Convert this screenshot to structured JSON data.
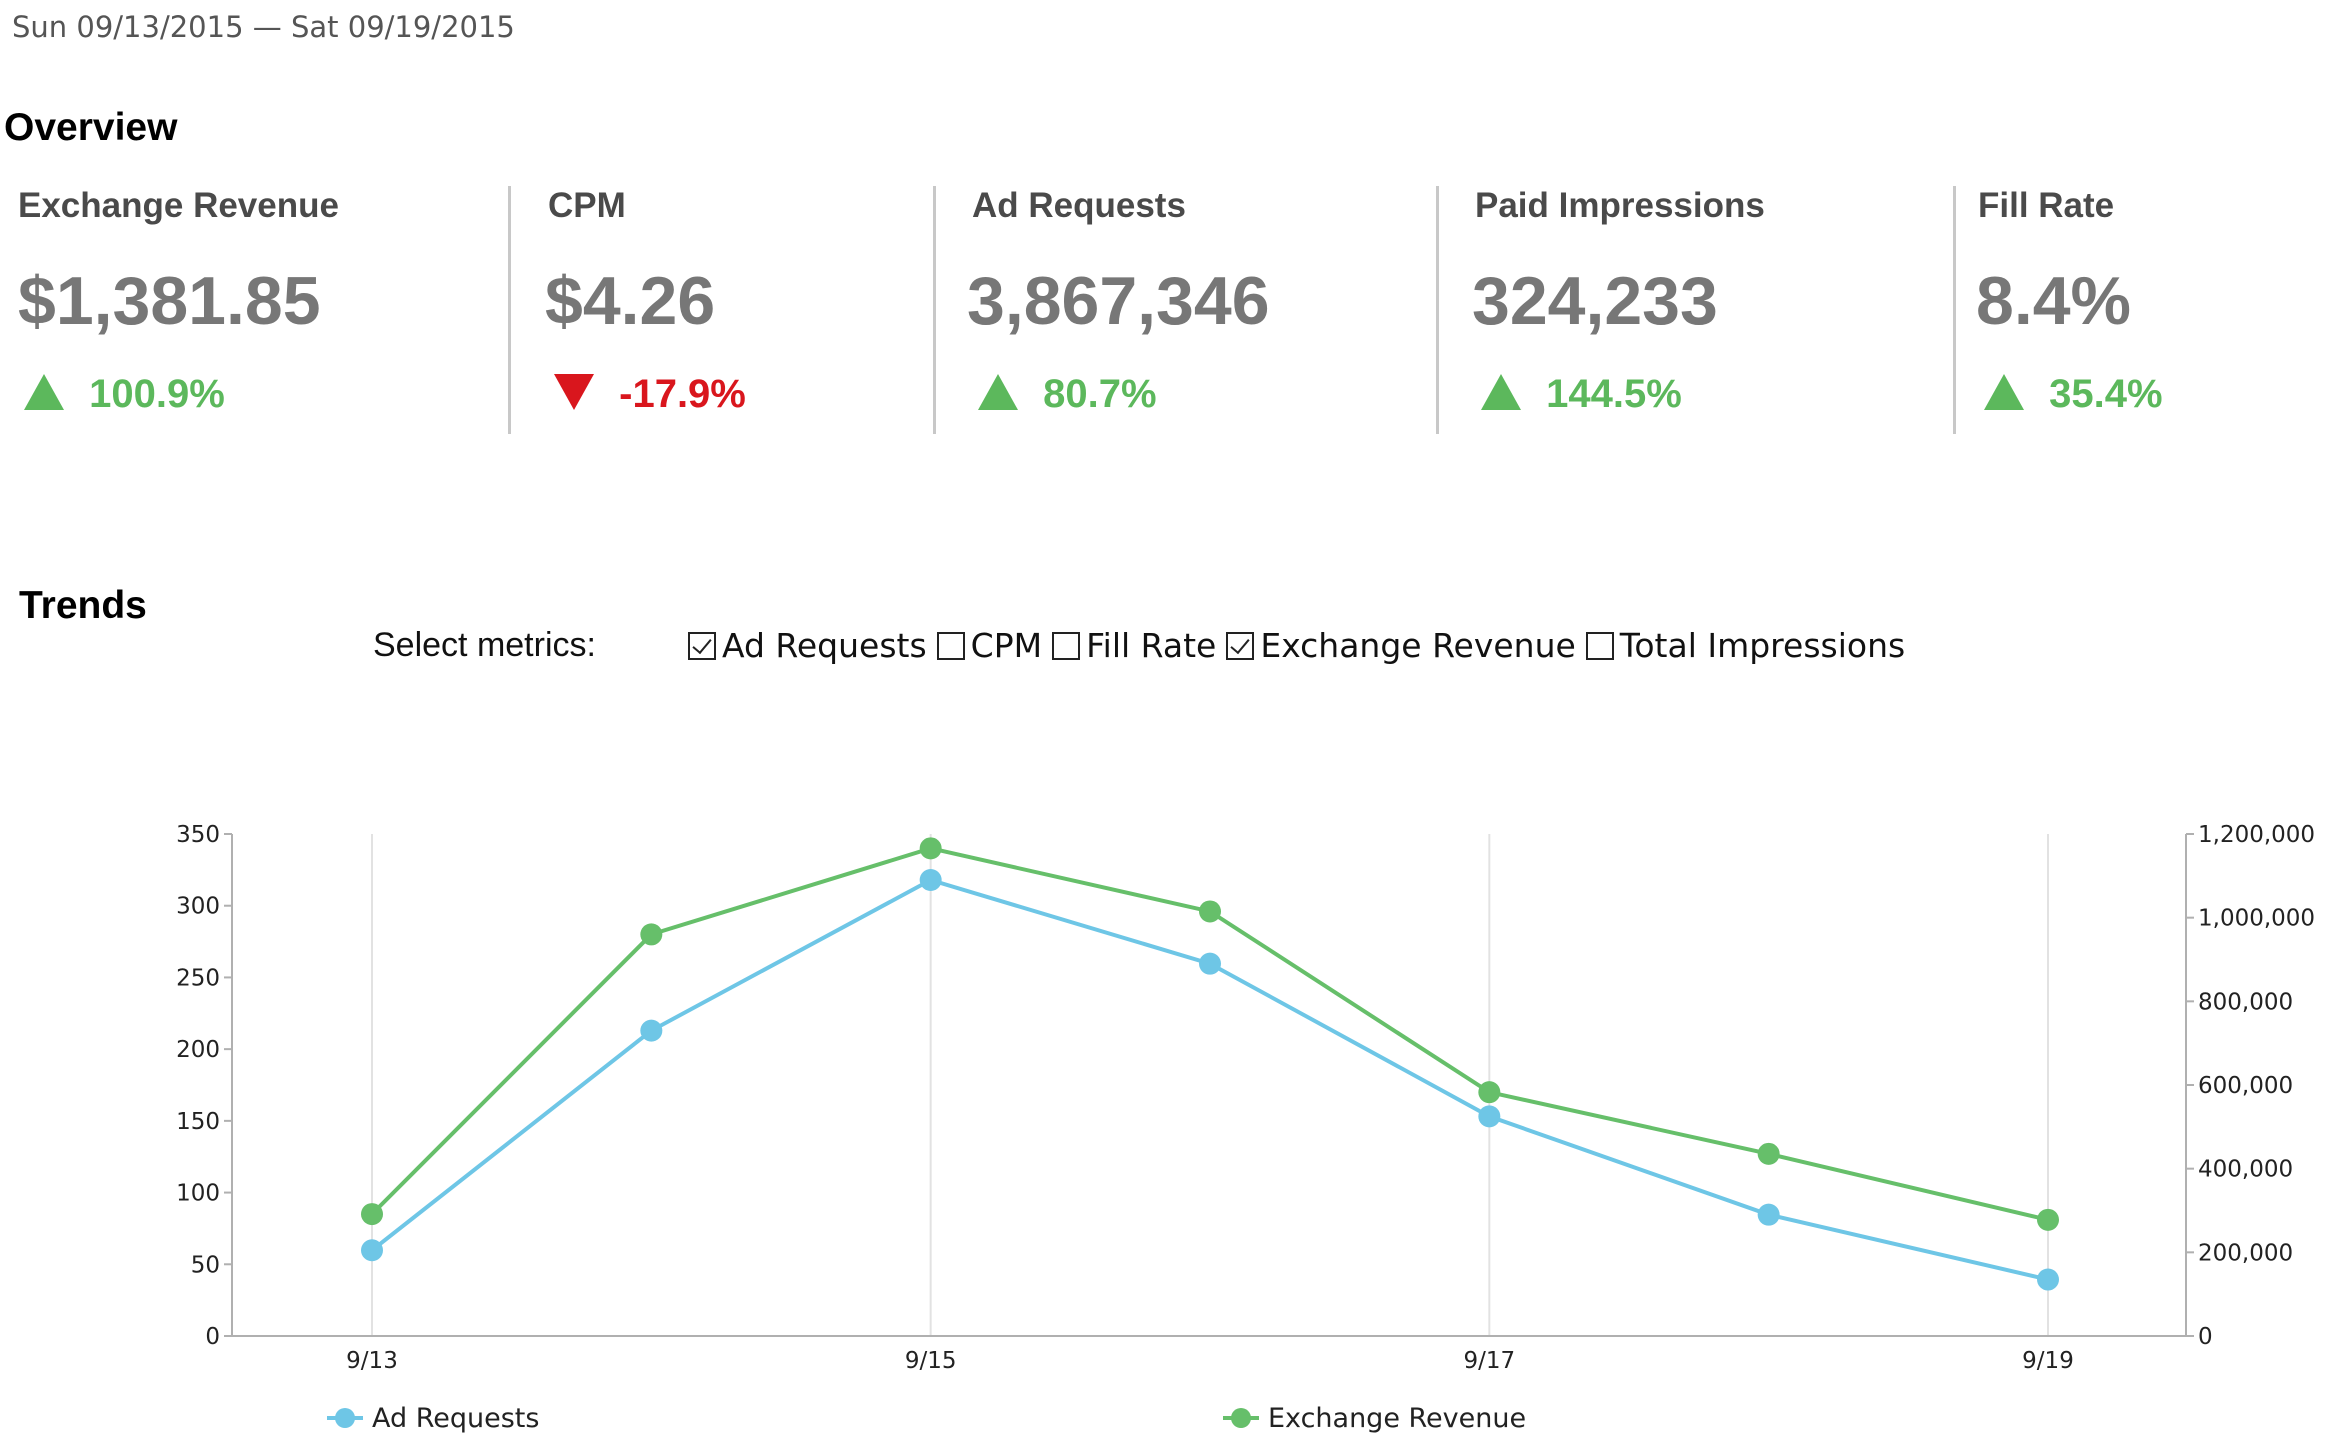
{
  "header": {
    "date_range": "Sun 09/13/2015 — Sat 09/19/2015"
  },
  "overview": {
    "title": "Overview",
    "metrics": [
      {
        "label": "Exchange Revenue",
        "value": "$1,381.85",
        "delta": "100.9%",
        "direction": "up"
      },
      {
        "label": "CPM",
        "value": "$4.26",
        "delta": "-17.9%",
        "direction": "down"
      },
      {
        "label": "Ad Requests",
        "value": "3,867,346",
        "delta": "80.7%",
        "direction": "up"
      },
      {
        "label": "Paid Impressions",
        "value": "324,233",
        "delta": "144.5%",
        "direction": "up"
      },
      {
        "label": "Fill Rate",
        "value": "8.4%",
        "delta": "35.4%",
        "direction": "up"
      }
    ]
  },
  "trends": {
    "title": "Trends",
    "select_label": "Select metrics:",
    "options": [
      {
        "label": "Ad Requests",
        "checked": true
      },
      {
        "label": "CPM",
        "checked": false
      },
      {
        "label": "Fill Rate",
        "checked": false
      },
      {
        "label": "Exchange Revenue",
        "checked": true
      },
      {
        "label": "Total Impressions",
        "checked": false
      }
    ]
  },
  "colors": {
    "up": "#5cb85c",
    "down": "#d9161d",
    "ad_requests": "#6ec6e6",
    "exchange_revenue": "#66bf6a"
  },
  "chart_data": {
    "type": "line",
    "x": [
      "9/13",
      "9/14",
      "9/15",
      "9/16",
      "9/17",
      "9/18",
      "9/19"
    ],
    "x_tick_labels": [
      "9/13",
      "9/15",
      "9/17",
      "9/19"
    ],
    "series": [
      {
        "name": "Ad Requests",
        "axis": "right",
        "values": [
          205000,
          730000,
          1090000,
          890000,
          525000,
          290000,
          135000
        ]
      },
      {
        "name": "Exchange Revenue",
        "axis": "left",
        "values": [
          85,
          280,
          340,
          296,
          170,
          127,
          81
        ]
      }
    ],
    "left_ticks": [
      "0",
      "50",
      "100",
      "150",
      "200",
      "250",
      "300",
      "350"
    ],
    "right_ticks": [
      "0",
      "200,000",
      "400,000",
      "600,000",
      "800,000",
      "1,000,000",
      "1,200,000"
    ],
    "left_ylim": [
      0,
      350
    ],
    "right_ylim": [
      0,
      1200000
    ],
    "legend": [
      "Ad Requests",
      "Exchange Revenue"
    ],
    "legend_position": "bottom",
    "grid": "vertical"
  }
}
